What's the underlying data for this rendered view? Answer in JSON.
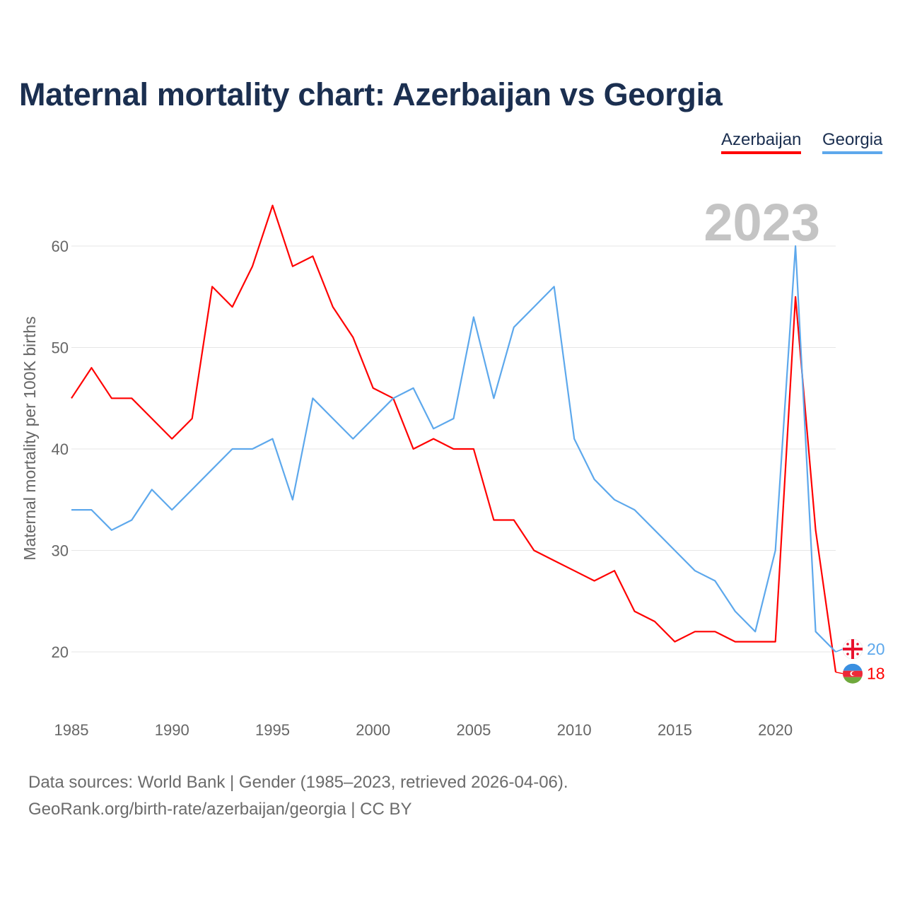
{
  "title": "Maternal mortality chart: Azerbaijan vs Georgia",
  "source_line1": "Data sources: World Bank | Gender (1985–2023, retrieved 2026-04-06).",
  "source_line2": "GeoRank.org/birth-rate/azerbaijan/georgia | CC BY",
  "chart_data": {
    "type": "line",
    "title": "Maternal mortality chart: Azerbaijan vs Georgia",
    "xlabel": "",
    "ylabel": "Maternal mortality per 100K births",
    "year_label": "2023",
    "x": [
      1985,
      1986,
      1987,
      1988,
      1989,
      1990,
      1991,
      1992,
      1993,
      1994,
      1995,
      1996,
      1997,
      1998,
      1999,
      2000,
      2001,
      2002,
      2003,
      2004,
      2005,
      2006,
      2007,
      2008,
      2009,
      2010,
      2011,
      2012,
      2013,
      2014,
      2015,
      2016,
      2017,
      2018,
      2019,
      2020,
      2021,
      2022,
      2023
    ],
    "xticks": [
      1985,
      1990,
      1995,
      2000,
      2005,
      2010,
      2015,
      2020
    ],
    "yticks": [
      20,
      30,
      40,
      50,
      60
    ],
    "xlim": [
      1985,
      2023
    ],
    "ylim": [
      14.2,
      64
    ],
    "grid": true,
    "legend": "top-right",
    "series": [
      {
        "name": "Azerbaijan",
        "color": "#ff0000",
        "end_label": "18",
        "values": [
          45,
          48,
          45,
          45,
          43,
          41,
          43,
          56,
          54,
          58,
          64,
          58,
          59,
          54,
          51,
          46,
          45,
          40,
          41,
          40,
          40,
          33,
          33,
          30,
          29,
          28,
          27,
          28,
          24,
          23,
          21,
          22,
          22,
          21,
          21,
          21,
          55,
          32,
          18
        ]
      },
      {
        "name": "Georgia",
        "color": "#5da8ec",
        "end_label": "20",
        "values": [
          34,
          34,
          32,
          33,
          36,
          34,
          36,
          38,
          40,
          40,
          41,
          35,
          45,
          43,
          41,
          43,
          45,
          46,
          42,
          43,
          53,
          45,
          52,
          54,
          56,
          41,
          37,
          35,
          34,
          32,
          30,
          28,
          27,
          24,
          22,
          30,
          60,
          22,
          20
        ]
      }
    ]
  }
}
